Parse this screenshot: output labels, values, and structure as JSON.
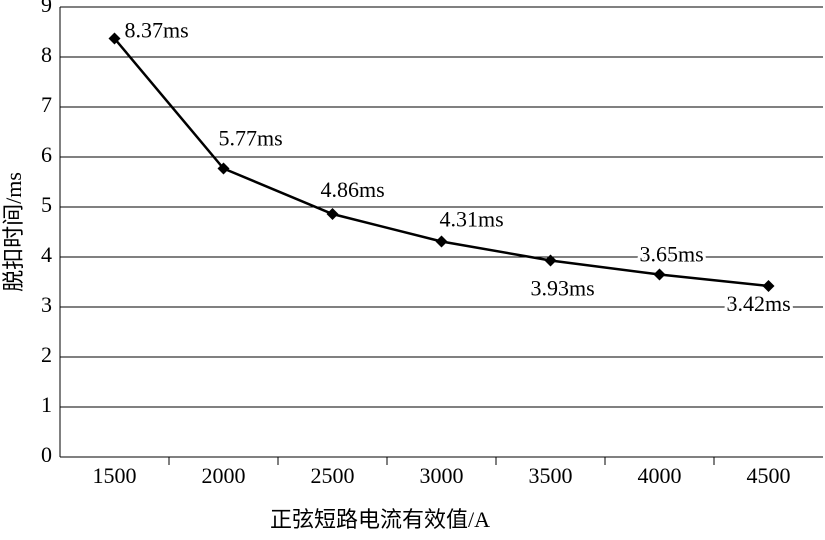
{
  "chart_data": {
    "type": "line",
    "x_label": "正弦短路电流有效值/A",
    "y_label": "脱扣时间/ms",
    "categories": [
      "1500",
      "2000",
      "2500",
      "3000",
      "3500",
      "4000",
      "4500"
    ],
    "values": [
      8.37,
      5.77,
      4.86,
      4.31,
      3.93,
      3.65,
      3.42
    ],
    "value_labels": [
      "8.37ms",
      "5.77ms",
      "4.86ms",
      "4.31ms",
      "3.93ms",
      "3.65ms",
      "3.42ms"
    ],
    "color": "#000000",
    "ylim": [
      0,
      9
    ],
    "yticks": [
      0,
      1,
      2,
      3,
      4,
      5,
      6,
      7,
      8,
      9
    ],
    "grid": true
  }
}
